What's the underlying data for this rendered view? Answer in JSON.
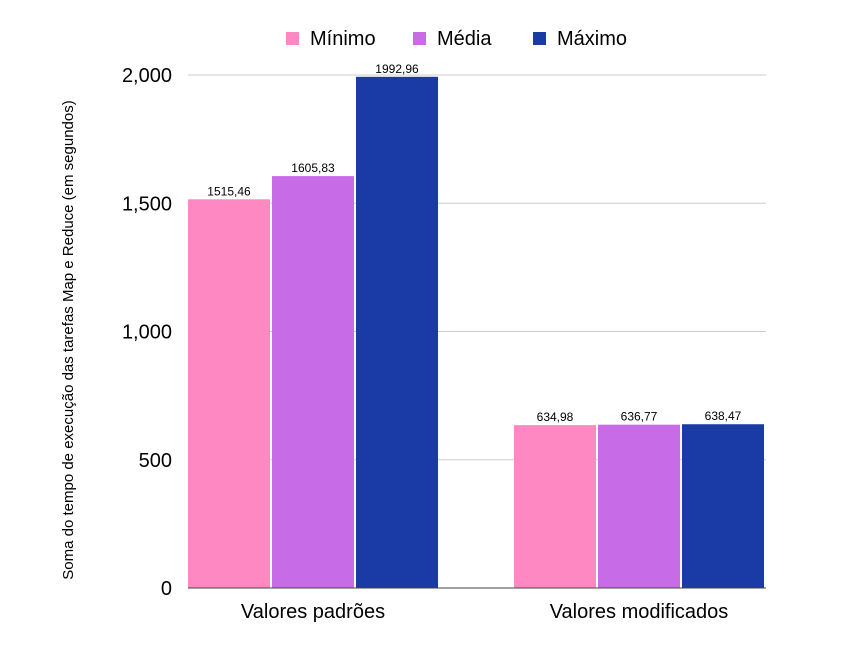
{
  "chart_data": {
    "type": "bar",
    "title": "",
    "xlabel": "",
    "ylabel": "Soma do tempo de execução das tarefas Map e Reduce (em segundos)",
    "categories": [
      "Valores padrões",
      "Valores modificados"
    ],
    "series": [
      {
        "name": "Mínimo",
        "color": "#fe89c2",
        "values": [
          1515.46,
          634.98
        ],
        "labels": [
          "1515,46",
          "634,98"
        ]
      },
      {
        "name": "Média",
        "color": "#c86be6",
        "values": [
          1605.83,
          636.77
        ],
        "labels": [
          "1605,83",
          "636,77"
        ]
      },
      {
        "name": "Máximo",
        "color": "#1a3aa6",
        "values": [
          1992.96,
          638.47
        ],
        "labels": [
          "1992,96",
          "638,47"
        ]
      }
    ],
    "ylim": [
      0,
      2000
    ],
    "yticks": [
      0,
      500,
      1000,
      1500,
      2000
    ],
    "ytick_labels": [
      "0",
      "500",
      "1,000",
      "1,500",
      "2,000"
    ],
    "grid": true,
    "legend_position": "top-center"
  }
}
